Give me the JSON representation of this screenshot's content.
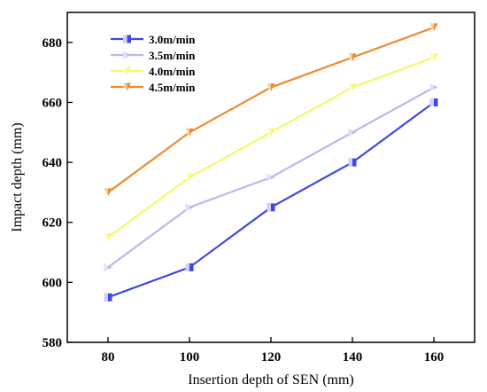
{
  "chart_data": {
    "type": "line",
    "title": "",
    "xlabel": "Insertion depth of SEN (mm)",
    "ylabel": "Impact depth (mm)",
    "x": [
      80,
      100,
      120,
      140,
      160
    ],
    "xlim": [
      70,
      170
    ],
    "ylim": [
      580,
      690
    ],
    "xticks": [
      80,
      100,
      120,
      140,
      160
    ],
    "yticks": [
      580,
      600,
      620,
      640,
      660,
      680
    ],
    "grid": false,
    "legend_position": "top-left",
    "series": [
      {
        "name": "3.0m/min",
        "color": "#3f48e0",
        "marker": "square",
        "values": [
          595,
          605,
          625,
          640,
          660
        ]
      },
      {
        "name": "3.5m/min",
        "color": "#b8b8f2",
        "marker": "triangle-right",
        "values": [
          605,
          625,
          635,
          650,
          665
        ]
      },
      {
        "name": "4.0m/min",
        "color": "#f7f76a",
        "marker": "triangle-down",
        "values": [
          615,
          635,
          650,
          665,
          675
        ]
      },
      {
        "name": "4.5m/min",
        "color": "#ef8a2e",
        "marker": "triangle-down",
        "values": [
          630,
          650,
          665,
          675,
          685
        ]
      }
    ]
  }
}
